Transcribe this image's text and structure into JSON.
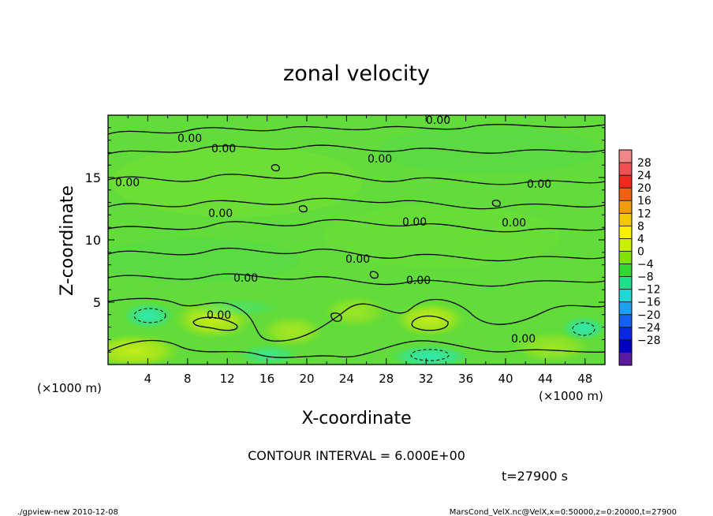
{
  "chart_data": {
    "type": "heatmap",
    "title": "zonal velocity",
    "xlabel": "X-coordinate",
    "ylabel": "Z-coordinate",
    "x_unit_label": "(×1000 m)",
    "x_unit_label_right": "(×1000 m)",
    "x_ticks": [
      4,
      8,
      12,
      16,
      20,
      24,
      28,
      32,
      36,
      40,
      44,
      48
    ],
    "y_ticks": [
      5,
      10,
      15
    ],
    "xlim": [
      0,
      50
    ],
    "ylim": [
      0,
      20
    ],
    "colorbar": {
      "labels": [
        "28",
        "24",
        "20",
        "16",
        "12",
        "8",
        "4",
        "0",
        "−4",
        "−8",
        "−12",
        "−16",
        "−20",
        "−24",
        "−28"
      ],
      "colors": [
        "#f08888",
        "#f05050",
        "#ee2a1e",
        "#f06010",
        "#f39a10",
        "#f5c800",
        "#f8f000",
        "#c8f000",
        "#80e400",
        "#30d830",
        "#1ee08a",
        "#1ed8d8",
        "#1ea0f0",
        "#1460f0",
        "#0828e0",
        "#0000c0",
        "#5a1aa0"
      ]
    },
    "contour_label": "0.00",
    "contour_interval_text": "CONTOUR INTERVAL = 6.000E+00",
    "time_text": "t=27900 s"
  },
  "footer": {
    "left": "./gpview-new  2010-12-08",
    "right": "MarsCond_VelX.nc@VelX,x=0:50000,z=0:20000,t=27900"
  }
}
